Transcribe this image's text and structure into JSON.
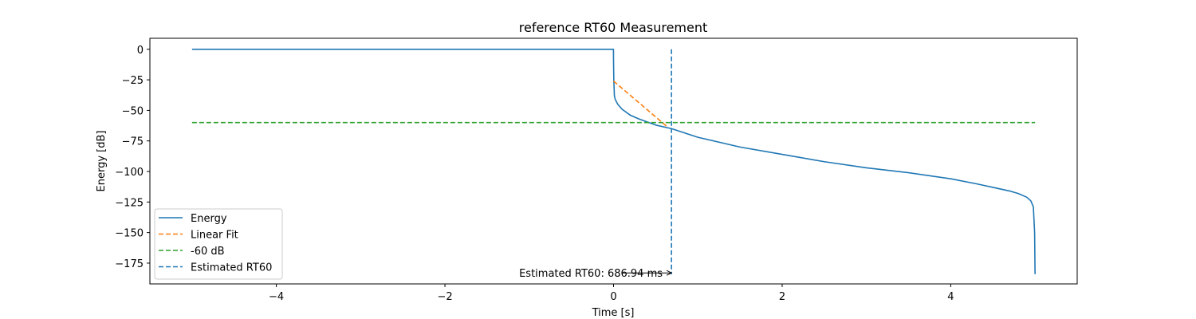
{
  "chart_data": {
    "type": "line",
    "title": "reference RT60 Measurement",
    "xlabel": "Time [s]",
    "ylabel": "Energy [dB]",
    "xlim": [
      -5.5,
      5.5
    ],
    "ylim": [
      -192,
      9
    ],
    "xticks": [
      -4,
      -2,
      0,
      2,
      4
    ],
    "yticks": [
      0,
      -25,
      -50,
      -75,
      -100,
      -125,
      -150,
      -175
    ],
    "xtick_labels": [
      "−4",
      "−2",
      "0",
      "2",
      "4"
    ],
    "ytick_labels": [
      "0",
      "−25",
      "−50",
      "−75",
      "−100",
      "−125",
      "−150",
      "−175"
    ],
    "grid": false,
    "legend_position": "lower-left",
    "series": [
      {
        "name": "Energy",
        "style": "solid",
        "color": "#1f77b4",
        "x": [
          -5,
          -0.001,
          0,
          0.003,
          0.01,
          0.02,
          0.05,
          0.1,
          0.2,
          0.3,
          0.5,
          0.69,
          1.0,
          1.5,
          2.0,
          2.5,
          3.0,
          3.5,
          4.0,
          4.3,
          4.5,
          4.7,
          4.8,
          4.9,
          4.95,
          4.98,
          4.995,
          5.0
        ],
        "y": [
          0,
          0,
          -10,
          -25,
          -38,
          -41,
          -45,
          -49,
          -54,
          -57,
          -62,
          -65,
          -72,
          -80,
          -86,
          -92,
          -97,
          -101,
          -106,
          -110,
          -113,
          -116,
          -118,
          -121,
          -124,
          -129,
          -150,
          -184
        ]
      },
      {
        "name": "Linear Fit",
        "style": "dashed",
        "color": "#ff7f0e",
        "x": [
          0,
          0.63
        ],
        "y": [
          -26,
          -63
        ]
      },
      {
        "name": "-60 dB",
        "style": "dashed",
        "color": "#2ca02c",
        "x": [
          -5,
          5
        ],
        "y": [
          -60,
          -60
        ]
      },
      {
        "name": "Estimated RT60",
        "style": "dashed",
        "color": "#1f77b4",
        "x": [
          0.687,
          0.687
        ],
        "y": [
          0,
          -184
        ]
      }
    ],
    "annotation": {
      "text": "Estimated RT60: 686.94 ms",
      "arrow_from": [
        0.1,
        -183
      ],
      "arrow_to": [
        0.687,
        -183
      ]
    }
  }
}
